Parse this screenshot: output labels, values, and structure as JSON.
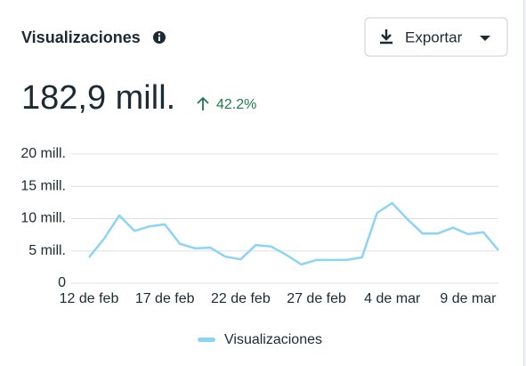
{
  "header": {
    "title": "Visualizaciones",
    "value": "182,9 mill.",
    "change": "42.2%",
    "button": "Exportar"
  },
  "chart_data": {
    "type": "line",
    "categories": [
      "12 de feb",
      null,
      null,
      null,
      null,
      "17 de feb",
      null,
      null,
      null,
      null,
      "22 de feb",
      null,
      null,
      null,
      null,
      "27 de feb",
      null,
      null,
      null,
      null,
      "4 de mar",
      null,
      null,
      null,
      null,
      "9 de mar",
      null,
      null
    ],
    "series": [
      {
        "name": "Visualizaciones",
        "color": "#8dd3f6",
        "values": [
          4000000,
          6900000,
          10500000,
          8100000,
          8800000,
          9100000,
          6100000,
          5400000,
          5500000,
          4100000,
          3700000,
          5900000,
          5700000,
          4400000,
          2900000,
          3600000,
          3600000,
          3600000,
          4000000,
          10900000,
          12400000,
          9900000,
          7700000,
          7700000,
          8600000,
          7600000,
          7900000,
          5100000
        ]
      }
    ],
    "ylim": [
      0,
      20000000
    ],
    "yticks": [
      0,
      {
        "value": 5000000,
        "label": "5 mill."
      },
      {
        "value": 10000000,
        "label": "10 mill."
      },
      {
        "value": 15000000,
        "label": "15 mill."
      },
      {
        "value": 20000000,
        "label": "20 mill."
      }
    ],
    "grid": true
  }
}
